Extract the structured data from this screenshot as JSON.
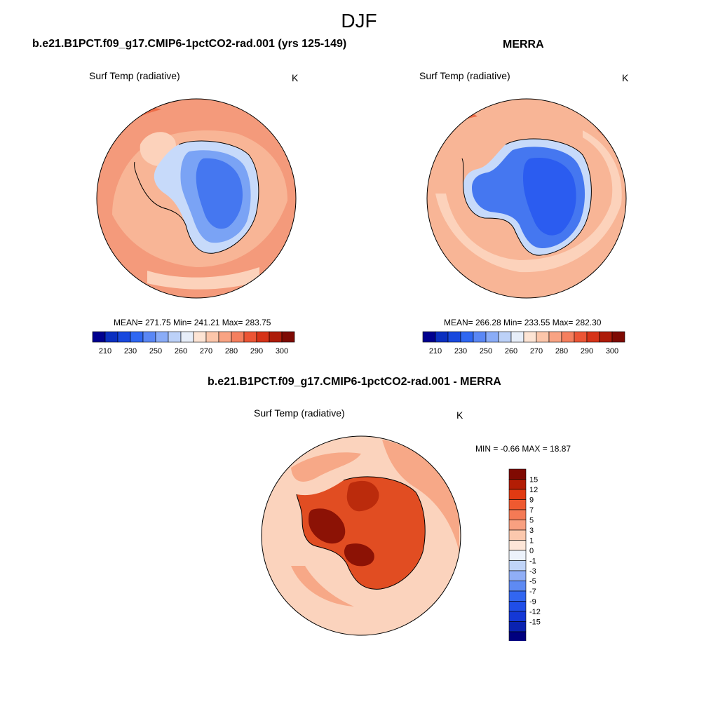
{
  "figure": {
    "season": "DJF",
    "panels": [
      {
        "title": "b.e21.B1PCT.f09_g17.CMIP6-1pctCO2-rad.001 (yrs 125-149)",
        "variable": "Surf Temp (radiative)",
        "units": "K",
        "stats": "MEAN= 271.75  Min= 241.21  Max= 283.75"
      },
      {
        "title": "MERRA",
        "variable": "Surf Temp (radiative)",
        "units": "K",
        "stats": "MEAN= 266.28  Min= 233.55  Max= 282.30"
      },
      {
        "title": "b.e21.B1PCT.f09_g17.CMIP6-1pctCO2-rad.001 - MERRA",
        "variable": "Surf Temp (radiative)",
        "units": "K",
        "stats": "MIN =  -0.66 MAX =  18.87"
      }
    ],
    "colorbar_abs": {
      "colors": [
        "#00008f",
        "#0a2fc0",
        "#1848de",
        "#2f67f2",
        "#5a87f5",
        "#8aacf7",
        "#bcd1f8",
        "#e7eef9",
        "#fde4d4",
        "#fcc6aa",
        "#f9a383",
        "#f57f5e",
        "#ec5535",
        "#d63318",
        "#ad1b08",
        "#7e0a03"
      ],
      "labels": [
        "210",
        "230",
        "250",
        "260",
        "270",
        "280",
        "290",
        "300"
      ]
    },
    "colorbar_diff": {
      "colors": [
        "#00007f",
        "#0a22b0",
        "#1438d6",
        "#204ee8",
        "#3266f0",
        "#5e8af3",
        "#90aef6",
        "#c0d4f8",
        "#ecf2fb",
        "#fde6d8",
        "#fbc8ad",
        "#f8a080",
        "#f47a55",
        "#ef5a30",
        "#e13a12",
        "#b31d05",
        "#800a02"
      ],
      "labels": [
        "15",
        "12",
        "9",
        "7",
        "5",
        "3",
        "1",
        "0",
        "-1",
        "-3",
        "-5",
        "-7",
        "-9",
        "-12",
        "-15"
      ]
    },
    "map_palette": {
      "ocean_warm": "#f49a7b",
      "ocean_mid": "#f8b596",
      "ocean_light": "#fcd2bb",
      "ocean_hot": "#ee6d48",
      "ice_edge": "#c7dafa",
      "ice_mid": "#7aa3f5",
      "ice_core": "#4577f0",
      "ice_deep": "#2b5cf0",
      "diff_base": "#fbd3bd",
      "diff_mid": "#f7a887",
      "diff_land": "#e14d22",
      "diff_hot": "#bb2b0c",
      "diff_max": "#8c1205"
    }
  }
}
